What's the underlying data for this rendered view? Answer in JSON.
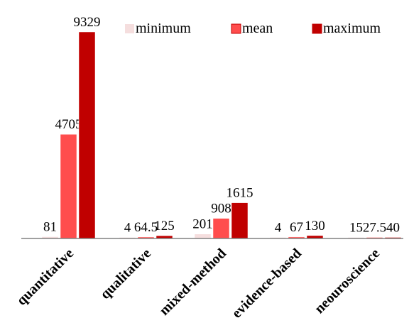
{
  "chart_data": {
    "type": "bar",
    "categories": [
      "quantitative",
      "qualitative",
      "mixed-method",
      "evidence-based",
      "neouroscience"
    ],
    "series": [
      {
        "name": "minimum",
        "values": [
          81,
          4,
          201,
          4,
          15
        ],
        "labels": [
          "81",
          "4",
          "201",
          "4",
          "15"
        ],
        "color": "#f5dede"
      },
      {
        "name": "mean",
        "values": [
          4705,
          64.5,
          908,
          67,
          27.5
        ],
        "labels": [
          "4705",
          "64.5",
          "908",
          "67",
          "27.5"
        ],
        "color": "#ff4d4d"
      },
      {
        "name": "maximum",
        "values": [
          9329,
          125,
          1615,
          130,
          40
        ],
        "labels": [
          "9329",
          "125",
          "1615",
          "130",
          "40"
        ],
        "color": "#c00000"
      }
    ],
    "ylim": [
      0,
      9329
    ],
    "legend": "top",
    "grid": false,
    "title": "",
    "xlabel": "",
    "ylabel": ""
  }
}
